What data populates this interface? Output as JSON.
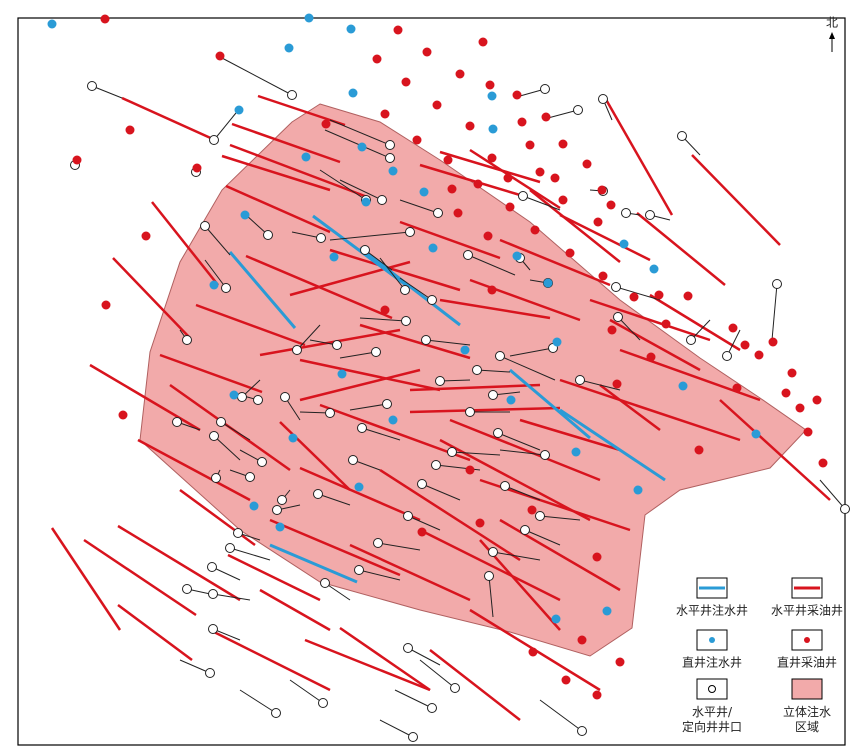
{
  "north": "北",
  "legend": {
    "items": [
      {
        "label": "水平井注水井"
      },
      {
        "label": "水平井采油井"
      },
      {
        "label": "直井注水井"
      },
      {
        "label": "直井采油井"
      },
      {
        "label": [
          "水平井/",
          "定向井井口"
        ]
      },
      {
        "label": [
          "立体注水",
          "区域"
        ]
      }
    ]
  }
}
